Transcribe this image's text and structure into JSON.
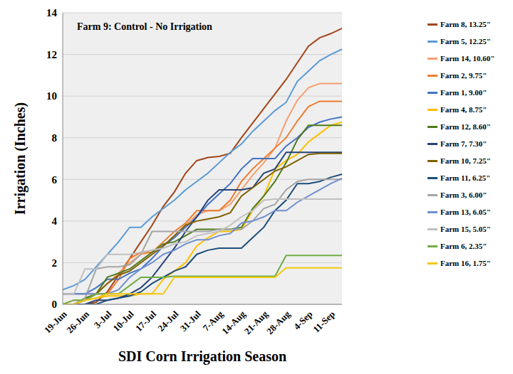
{
  "chart_data": {
    "type": "line",
    "title": "Farm 9: Control - No Irrigation",
    "x_label": "SDI Corn Irrigation Season",
    "y_label": "Irrigation (Inches)",
    "categories": [
      "19-Jun",
      null,
      "26-Jun",
      null,
      "3-Jul",
      null,
      "10-Jul",
      null,
      "17-Jul",
      null,
      "24-Jul",
      null,
      "31-Jul",
      null,
      "7-Aug",
      null,
      "14-Aug",
      null,
      "21-Aug",
      null,
      "28-Aug",
      null,
      "4-Sep",
      null,
      "11-Sep",
      null
    ],
    "ylim": [
      0,
      14
    ],
    "yticks": [
      0,
      2,
      4,
      6,
      8,
      10,
      12,
      14
    ],
    "grid": true,
    "legend": "right",
    "series": [
      {
        "name": "Farm 8, 13.25\"",
        "color": "#a0461a",
        "values": [
          0,
          0,
          0,
          0.1,
          0.6,
          1.4,
          2.2,
          3.0,
          3.8,
          4.7,
          5.4,
          6.3,
          6.9,
          7.05,
          7.1,
          7.25,
          8.0,
          8.7,
          9.4,
          10.1,
          10.8,
          11.6,
          12.4,
          12.8,
          13.0,
          13.25
        ]
      },
      {
        "name": "Farm 5, 12.25\"",
        "color": "#5b9bd5",
        "values": [
          0.7,
          0.9,
          1.2,
          1.8,
          2.4,
          3.0,
          3.7,
          3.7,
          4.2,
          4.6,
          5.0,
          5.5,
          5.9,
          6.3,
          6.8,
          7.3,
          7.7,
          8.3,
          8.8,
          9.3,
          9.7,
          10.7,
          11.2,
          11.7,
          12.0,
          12.25
        ]
      },
      {
        "name": "Farm 14, 10.60\"",
        "color": "#f4a070",
        "values": [
          0,
          0.2,
          0.2,
          0.5,
          1.0,
          1.5,
          2.0,
          2.4,
          2.5,
          2.8,
          3.3,
          3.8,
          4.3,
          4.5,
          4.5,
          4.8,
          5.5,
          6.2,
          6.8,
          7.5,
          8.8,
          9.8,
          10.4,
          10.6,
          10.6,
          10.6
        ]
      },
      {
        "name": "Farm 2, 9.75\"",
        "color": "#ed7d31",
        "values": [
          0.5,
          0.5,
          0.5,
          0.5,
          0.5,
          1.2,
          2.2,
          2.5,
          2.5,
          3.0,
          3.5,
          3.9,
          4.5,
          4.5,
          4.5,
          5.0,
          5.9,
          6.5,
          7.0,
          7.5,
          8.0,
          8.8,
          9.5,
          9.75,
          9.75,
          9.75
        ]
      },
      {
        "name": "Farm 1, 9.00\"",
        "color": "#4472c4",
        "values": [
          0.5,
          0.5,
          0.5,
          0.8,
          1.2,
          1.2,
          1.5,
          1.7,
          2.2,
          2.8,
          3.2,
          3.7,
          4.2,
          4.8,
          5.3,
          5.8,
          6.5,
          7.0,
          7.0,
          7.0,
          7.6,
          8.0,
          8.5,
          8.75,
          8.9,
          9.0
        ]
      },
      {
        "name": "Farm 4, 8.75\"",
        "color": "#ffc000",
        "values": [
          0,
          0,
          0.2,
          0.3,
          0.4,
          0.4,
          0.4,
          0.5,
          0.5,
          1.2,
          1.6,
          2.0,
          2.8,
          3.2,
          3.5,
          3.5,
          3.6,
          4.5,
          5.2,
          6.5,
          6.9,
          7.2,
          7.8,
          8.2,
          8.6,
          8.75
        ]
      },
      {
        "name": "Farm 12, 8.60\"",
        "color": "#4e7a1e",
        "values": [
          0,
          0,
          0.3,
          0.5,
          1.3,
          1.5,
          1.7,
          2.1,
          2.5,
          2.9,
          3.0,
          3.3,
          3.6,
          3.6,
          3.6,
          3.6,
          3.7,
          4.6,
          5.2,
          5.9,
          6.8,
          7.9,
          8.6,
          8.6,
          8.6,
          8.6
        ]
      },
      {
        "name": "Farm 7, 7.30\"",
        "color": "#264478",
        "values": [
          0,
          0,
          0,
          0.2,
          0.2,
          0.3,
          0.5,
          0.8,
          1.3,
          2.0,
          2.7,
          3.5,
          4.2,
          5.0,
          5.5,
          5.5,
          5.5,
          5.6,
          6.3,
          6.5,
          7.3,
          7.3,
          7.3,
          7.3,
          7.3,
          7.3
        ]
      },
      {
        "name": "Farm 10, 7.25\"",
        "color": "#7f6000",
        "values": [
          0,
          0,
          0.2,
          0.5,
          1.0,
          1.4,
          1.6,
          2.0,
          2.4,
          2.8,
          3.3,
          3.8,
          4.0,
          4.1,
          4.2,
          4.4,
          5.2,
          5.6,
          6.0,
          6.4,
          6.6,
          6.9,
          7.2,
          7.25,
          7.25,
          7.25
        ]
      },
      {
        "name": "Farm 11, 6.25\"",
        "color": "#1f4e79",
        "values": [
          0,
          0,
          0,
          0,
          0.2,
          0.3,
          0.4,
          0.6,
          1.0,
          1.3,
          1.6,
          1.8,
          2.4,
          2.6,
          2.7,
          2.7,
          2.7,
          3.2,
          3.7,
          4.5,
          5.0,
          5.8,
          5.8,
          5.9,
          6.1,
          6.25
        ]
      },
      {
        "name": "Farm 3, 6.00\"",
        "color": "#a5a5a5",
        "values": [
          0,
          0,
          0.3,
          1.7,
          1.8,
          1.8,
          1.9,
          2.4,
          3.5,
          3.5,
          3.5,
          3.5,
          3.5,
          3.5,
          3.6,
          3.6,
          3.6,
          4.0,
          4.6,
          4.8,
          5.5,
          5.9,
          6.0,
          6.0,
          6.0,
          6.0
        ]
      },
      {
        "name": "Farm 13, 6.05\"",
        "color": "#6f8fd0",
        "values": [
          0.5,
          0.5,
          0.5,
          0.5,
          0.5,
          0.7,
          1.3,
          1.7,
          2.0,
          2.4,
          2.6,
          2.9,
          3.1,
          3.1,
          3.3,
          3.4,
          3.9,
          4.0,
          4.2,
          4.5,
          4.5,
          4.9,
          5.2,
          5.5,
          5.8,
          6.05
        ]
      },
      {
        "name": "Farm 15, 5.05\"",
        "color": "#c0c0c0",
        "values": [
          0.5,
          0.5,
          1.7,
          1.7,
          2.4,
          2.4,
          2.4,
          2.5,
          2.6,
          2.7,
          2.9,
          3.0,
          3.3,
          3.4,
          3.5,
          3.8,
          4.2,
          4.5,
          5.0,
          5.05,
          5.05,
          5.05,
          5.05,
          5.05,
          5.05,
          5.05
        ]
      },
      {
        "name": "Farm 6, 2.35\"",
        "color": "#70ad47",
        "values": [
          0,
          0.2,
          0.2,
          0.5,
          0.5,
          0.5,
          0.9,
          1.3,
          1.3,
          1.3,
          1.35,
          1.35,
          1.35,
          1.35,
          1.35,
          1.35,
          1.35,
          1.35,
          1.35,
          1.35,
          2.35,
          2.35,
          2.35,
          2.35,
          2.35,
          2.35
        ]
      },
      {
        "name": "Farm 16, 1.75\"",
        "color": "#f2c811",
        "values": [
          0,
          0,
          0.2,
          0.3,
          0.5,
          0.5,
          0.5,
          0.5,
          0.5,
          0.5,
          1.3,
          1.3,
          1.3,
          1.3,
          1.3,
          1.3,
          1.3,
          1.3,
          1.3,
          1.3,
          1.75,
          1.75,
          1.75,
          1.75,
          1.75,
          1.75
        ]
      }
    ]
  }
}
